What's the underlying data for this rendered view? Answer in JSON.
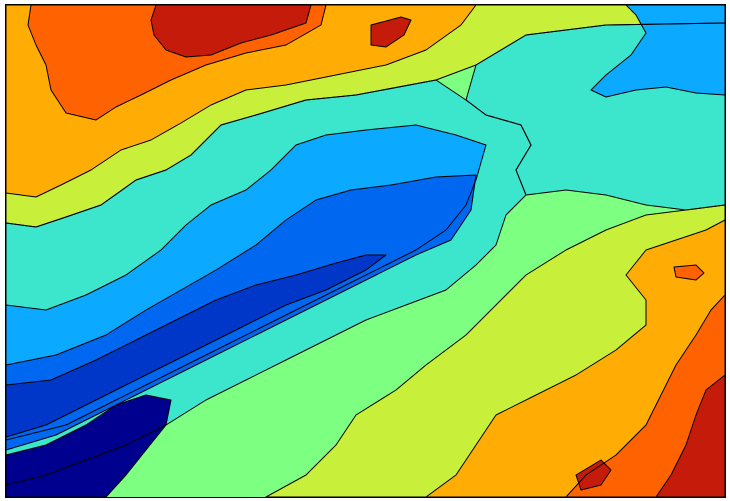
{
  "map": {
    "kind": "filled contour elevation map",
    "colormap": "jet",
    "levels": 10,
    "contour_lines": true,
    "colors": [
      "#00008f",
      "#0037c8",
      "#0068f0",
      "#0ba9ff",
      "#3be6cc",
      "#7dff82",
      "#c8f03a",
      "#ffad05",
      "#ff6200",
      "#c41b0a"
    ]
  }
}
